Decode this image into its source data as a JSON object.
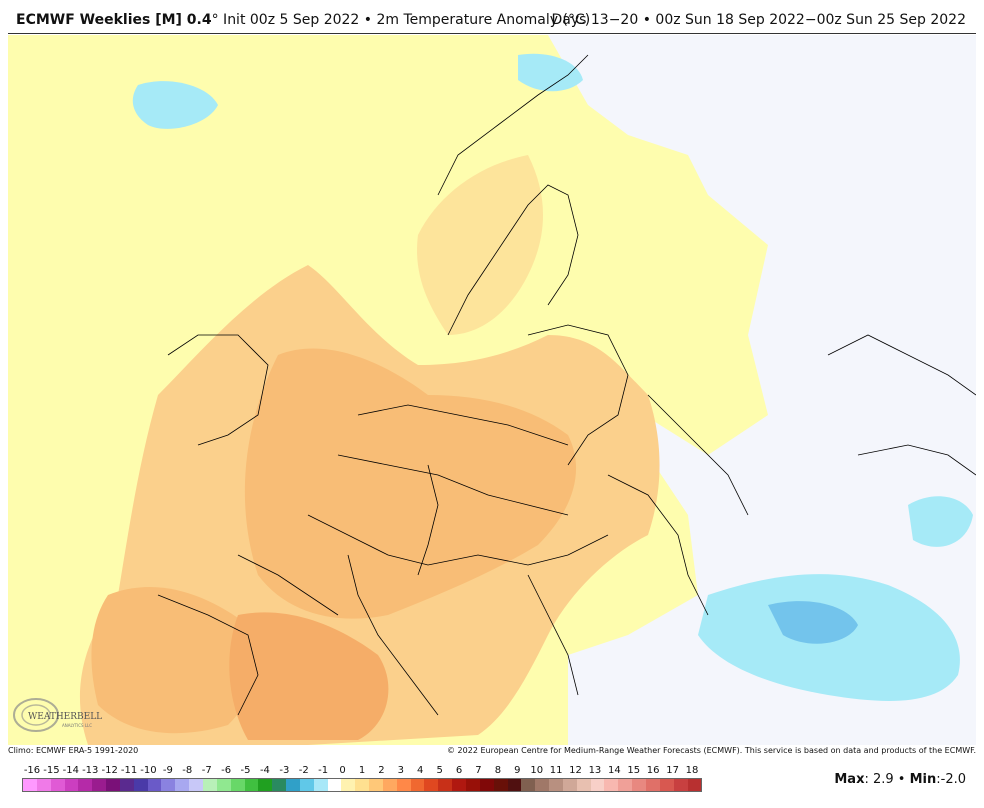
{
  "header": {
    "model": "ECMWF Weeklies [M] 0.4",
    "deg": "°",
    "init": " Init 00z 5 Sep 2022",
    "bullet": " • ",
    "variable": "2m Temperature Anomaly (°C)",
    "valid": "Days 13−20 • 00z Sun 18 Sep 2022−00z Sun 25 Sep 2022"
  },
  "footer": {
    "climo": "Climo: ECMWF ERA-5 1991-2020",
    "copyright": "© 2022 European Centre for Medium-Range Weather Forecasts (ECMWF). This service is based on data and products of the ECMWF."
  },
  "logo": {
    "text": "WEATHERBELL",
    "sub": "ANALYTICS LLC"
  },
  "legend": {
    "labels": [
      "-16",
      "-15",
      "-14",
      "-13",
      "-12",
      "-11",
      "-10",
      "-9",
      "-8",
      "-7",
      "-6",
      "-5",
      "-4",
      "-3",
      "-2",
      "-1",
      "0",
      "1",
      "2",
      "3",
      "4",
      "5",
      "6",
      "7",
      "8",
      "9",
      "10",
      "11",
      "12",
      "13",
      "14",
      "15",
      "16",
      "17",
      "18"
    ],
    "colors": [
      "#ff99ff",
      "#f07ae8",
      "#e05ad5",
      "#cc3ec0",
      "#b52aa8",
      "#9a1c8f",
      "#7a1078",
      "#5a2a8f",
      "#4a3aa8",
      "#6a5ac8",
      "#8a82e0",
      "#a8a8f0",
      "#c8c8f8",
      "#b8f0b8",
      "#90e890",
      "#68d868",
      "#40c040",
      "#20a020",
      "#2a8a60",
      "#30a0c8",
      "#60c8e8",
      "#a8e8f8",
      "#ffffff",
      "#fff2b0",
      "#ffe090",
      "#ffc878",
      "#ffa860",
      "#ff8848",
      "#f06830",
      "#e04820",
      "#c83018",
      "#b01810",
      "#981008",
      "#800808",
      "#681008",
      "#501010",
      "#806050",
      "#a07868",
      "#b89080",
      "#d0a898",
      "#e8c0b0",
      "#f8d0c8",
      "#f8b8b0",
      "#f0a098",
      "#e88880",
      "#e07068",
      "#d85850",
      "#c84040",
      "#b83030"
    ]
  },
  "stats": {
    "max_label": "Max",
    "max_value": ": 2.9",
    "sep": " • ",
    "min_label": "Min",
    "min_value": ":-2.0"
  },
  "map": {
    "region": "Europe",
    "colors": {
      "background": "#fefdae",
      "warm1": "#fbd08c",
      "warm2": "#f8bd76",
      "warm3": "#f5ad68",
      "neutral": "#f4f6fc",
      "cool1": "#a6eaf7",
      "cool2": "#73c4ec",
      "border": "#000000"
    }
  }
}
